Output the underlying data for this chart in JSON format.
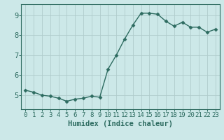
{
  "x": [
    0,
    1,
    2,
    3,
    4,
    5,
    6,
    7,
    8,
    9,
    10,
    11,
    12,
    13,
    14,
    15,
    16,
    17,
    18,
    19,
    20,
    21,
    22,
    23
  ],
  "y": [
    5.25,
    5.15,
    5.0,
    4.95,
    4.85,
    4.7,
    4.8,
    4.85,
    4.95,
    4.9,
    6.3,
    7.0,
    7.8,
    8.5,
    9.1,
    9.1,
    9.05,
    8.7,
    8.45,
    8.65,
    8.4,
    8.4,
    8.15,
    8.3
  ],
  "xlabel": "Humidex (Indice chaleur)",
  "bg_color": "#cce8e8",
  "line_color": "#2d6b60",
  "marker": "D",
  "marker_size": 2.5,
  "xlim": [
    -0.5,
    23.5
  ],
  "ylim": [
    4.3,
    9.55
  ],
  "yticks": [
    5,
    6,
    7,
    8,
    9
  ],
  "xticks": [
    0,
    1,
    2,
    3,
    4,
    5,
    6,
    7,
    8,
    9,
    10,
    11,
    12,
    13,
    14,
    15,
    16,
    17,
    18,
    19,
    20,
    21,
    22,
    23
  ],
  "xtick_labels": [
    "0",
    "1",
    "2",
    "3",
    "4",
    "5",
    "6",
    "7",
    "8",
    "9",
    "10",
    "11",
    "12",
    "13",
    "14",
    "15",
    "16",
    "17",
    "18",
    "19",
    "20",
    "21",
    "22",
    "23"
  ],
  "grid_color": "#b0cccc",
  "tick_color": "#2d6b60",
  "label_color": "#2d6b60",
  "font_size": 6.5,
  "xlabel_fontsize": 7.5
}
